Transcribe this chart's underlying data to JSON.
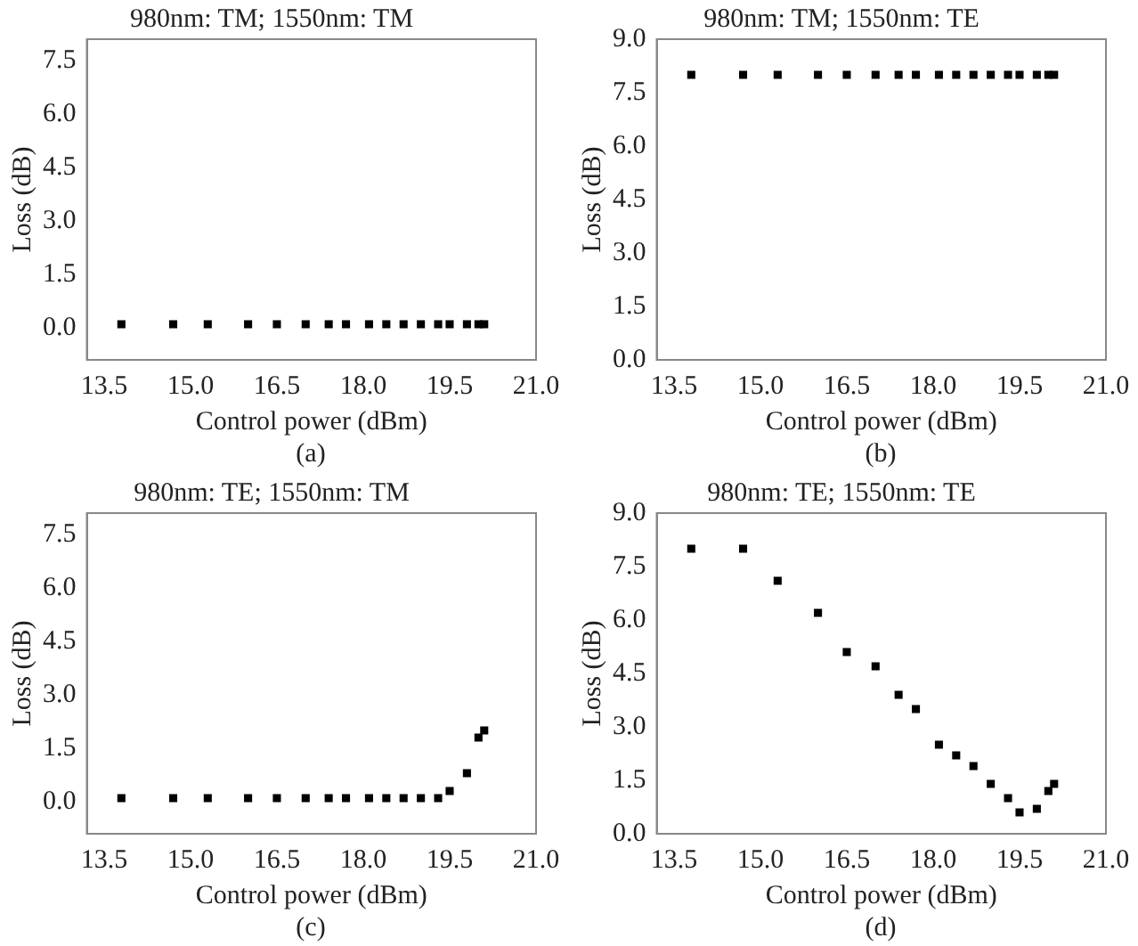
{
  "chart_data": [
    {
      "type": "scatter",
      "title": "980nm: TM; 1550nm: TM",
      "xlabel": "Control power (dBm)",
      "ylabel": "Loss (dB)",
      "annotations": [
        "(a)"
      ],
      "marker": "square",
      "grid": false,
      "legend": false,
      "x": [
        13.8,
        14.7,
        15.3,
        16.0,
        16.5,
        17.0,
        17.4,
        17.7,
        18.1,
        18.4,
        18.7,
        19.0,
        19.3,
        19.5,
        19.8,
        20.0,
        20.1
      ],
      "series": [
        {
          "color": "#000000",
          "values": [
            0.1,
            0.1,
            0.1,
            0.1,
            0.1,
            0.1,
            0.1,
            0.1,
            0.1,
            0.1,
            0.1,
            0.1,
            0.1,
            0.1,
            0.1,
            0.1,
            0.1
          ]
        }
      ],
      "xlim": [
        13.2,
        21.0
      ],
      "xticks": [
        13.5,
        {
          "value": 15,
          "label": "15.0"
        },
        16.5,
        {
          "value": 18,
          "label": "18.0"
        },
        19.5,
        {
          "value": 21,
          "label": "21.0"
        }
      ],
      "ylim": [
        -0.9,
        8.1
      ],
      "yticks": [
        {
          "value": 0,
          "label": "0.0"
        },
        1.5,
        {
          "value": 3,
          "label": "3.0"
        },
        4.5,
        {
          "value": 6,
          "label": "6.0"
        },
        7.5
      ]
    },
    {
      "type": "scatter",
      "title": "980nm: TM; 1550nm: TE",
      "xlabel": "Control power (dBm)",
      "ylabel": "Loss (dB)",
      "annotations": [
        "(b)"
      ],
      "marker": "square",
      "grid": false,
      "legend": false,
      "x": [
        13.8,
        14.7,
        15.3,
        16.0,
        16.5,
        17.0,
        17.4,
        17.7,
        18.1,
        18.4,
        18.7,
        19.0,
        19.3,
        19.5,
        19.8,
        20.0,
        20.1
      ],
      "series": [
        {
          "color": "#000000",
          "values": [
            8.0,
            8.0,
            8.0,
            8.0,
            8.0,
            8.0,
            8.0,
            8.0,
            8.0,
            8.0,
            8.0,
            8.0,
            8.0,
            8.0,
            8.0,
            8.0,
            8.0
          ]
        }
      ],
      "xlim": [
        13.2,
        21.0
      ],
      "xticks": [
        13.5,
        {
          "value": 15,
          "label": "15.0"
        },
        16.5,
        {
          "value": 18,
          "label": "18.0"
        },
        19.5,
        {
          "value": 21,
          "label": "21.0"
        }
      ],
      "ylim": [
        0,
        9
      ],
      "yticks": [
        {
          "value": 0,
          "label": "0.0"
        },
        1.5,
        {
          "value": 3,
          "label": "3.0"
        },
        4.5,
        {
          "value": 6,
          "label": "6.0"
        },
        7.5,
        {
          "value": 9,
          "label": "9.0"
        }
      ]
    },
    {
      "type": "scatter",
      "title": "980nm: TE; 1550nm: TM",
      "xlabel": "Control power (dBm)",
      "ylabel": "Loss (dB)",
      "annotations": [
        "(c)"
      ],
      "marker": "square",
      "grid": false,
      "legend": false,
      "x": [
        13.8,
        14.7,
        15.3,
        16.0,
        16.5,
        17.0,
        17.4,
        17.7,
        18.1,
        18.4,
        18.7,
        19.0,
        19.3,
        19.5,
        19.8,
        20.0,
        20.1
      ],
      "series": [
        {
          "color": "#000000",
          "values": [
            0.1,
            0.1,
            0.1,
            0.1,
            0.1,
            0.1,
            0.1,
            0.1,
            0.1,
            0.1,
            0.1,
            0.1,
            0.1,
            0.3,
            0.8,
            1.8,
            2.0
          ]
        }
      ],
      "xlim": [
        13.2,
        21.0
      ],
      "xticks": [
        13.5,
        {
          "value": 15,
          "label": "15.0"
        },
        16.5,
        {
          "value": 18,
          "label": "18.0"
        },
        19.5,
        {
          "value": 21,
          "label": "21.0"
        }
      ],
      "ylim": [
        -0.9,
        8.1
      ],
      "yticks": [
        {
          "value": 0,
          "label": "0.0"
        },
        1.5,
        {
          "value": 3,
          "label": "3.0"
        },
        4.5,
        {
          "value": 6,
          "label": "6.0"
        },
        7.5
      ]
    },
    {
      "type": "scatter",
      "title": "980nm: TE; 1550nm: TE",
      "xlabel": "Control power (dBm)",
      "ylabel": "Loss (dB)",
      "annotations": [
        "(d)"
      ],
      "marker": "square",
      "grid": false,
      "legend": false,
      "x": [
        13.8,
        14.7,
        15.3,
        16.0,
        16.5,
        17.0,
        17.4,
        17.7,
        18.1,
        18.4,
        18.7,
        19.0,
        19.3,
        19.5,
        19.8,
        20.0,
        20.1
      ],
      "series": [
        {
          "color": "#000000",
          "values": [
            8.0,
            8.0,
            7.1,
            6.2,
            5.1,
            4.7,
            3.9,
            3.5,
            2.5,
            2.2,
            1.9,
            1.4,
            1.0,
            0.6,
            0.7,
            1.2,
            1.4
          ]
        }
      ],
      "xlim": [
        13.2,
        21.0
      ],
      "xticks": [
        13.5,
        {
          "value": 15,
          "label": "15.0"
        },
        16.5,
        {
          "value": 18,
          "label": "18.0"
        },
        19.5,
        {
          "value": 21,
          "label": "21.0"
        }
      ],
      "ylim": [
        0,
        9
      ],
      "yticks": [
        {
          "value": 0,
          "label": "0.0"
        },
        1.5,
        {
          "value": 3,
          "label": "3.0"
        },
        4.5,
        {
          "value": 6,
          "label": "6.0"
        },
        7.5,
        {
          "value": 9,
          "label": "9.0"
        }
      ]
    }
  ]
}
